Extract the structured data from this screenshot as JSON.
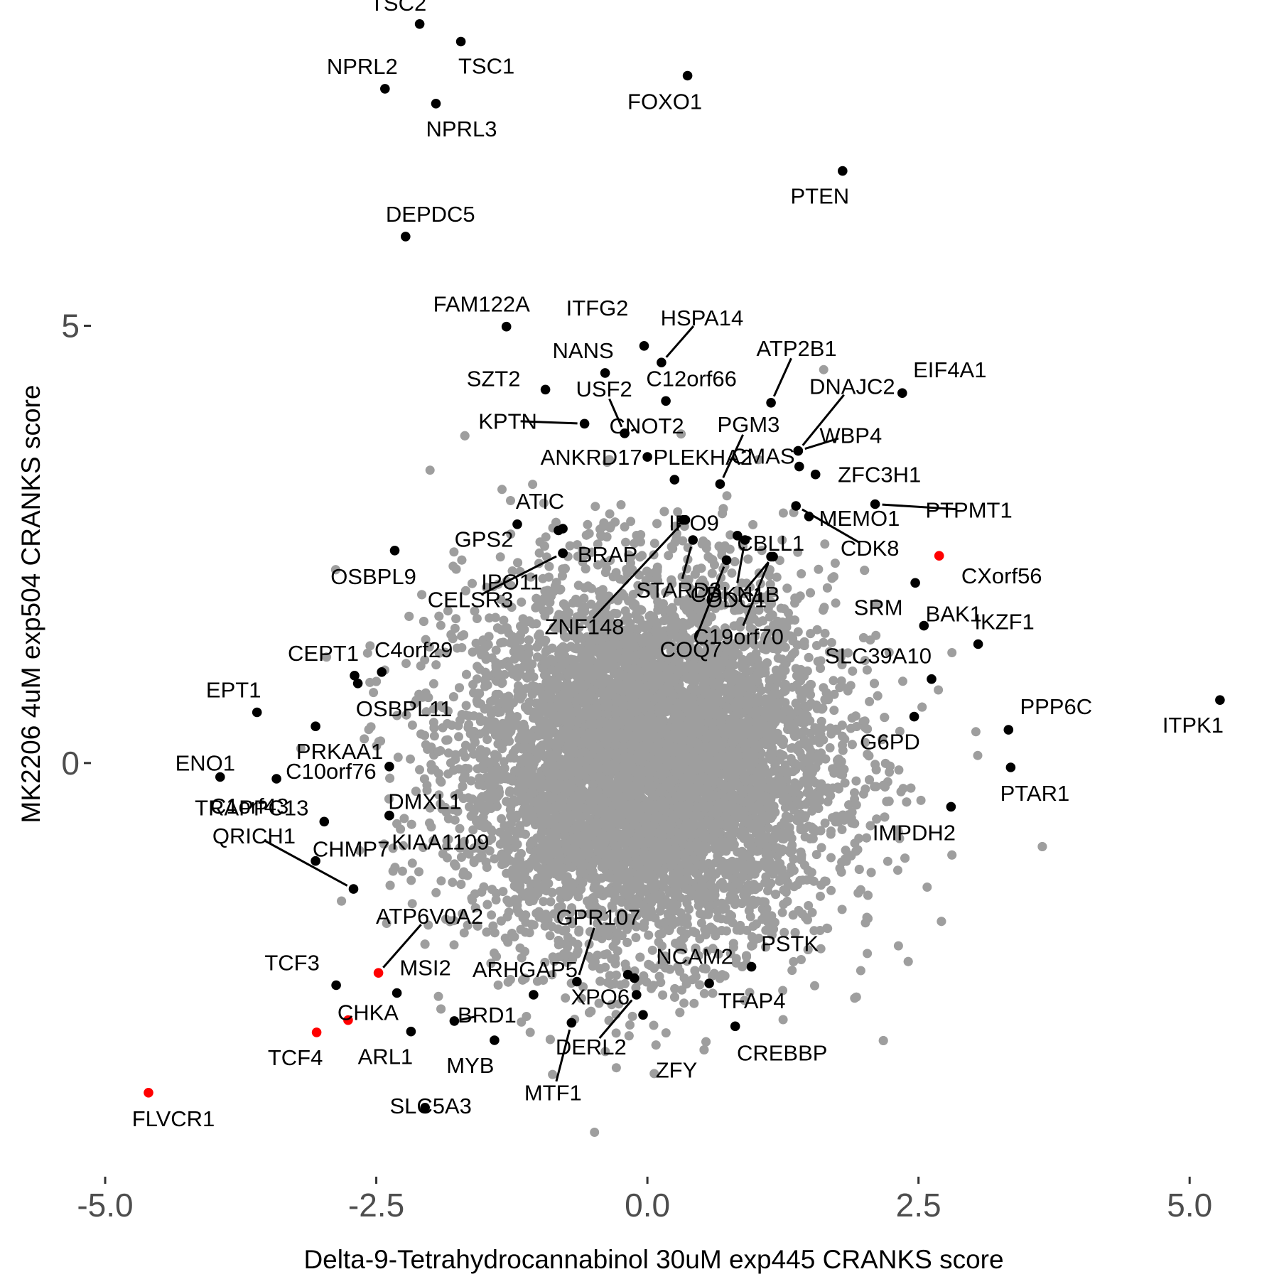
{
  "chart_data": {
    "type": "scatter",
    "title": "",
    "xlabel": "Delta-9-Tetrahydrocannabinol 30uM exp445 CRANKS score",
    "ylabel": "MK2206 4uM exp504 CRANKS score",
    "xlim": [
      -5.0,
      5.3
    ],
    "ylim": [
      -4.6,
      8.4
    ],
    "x_ticks": [
      -5.0,
      -2.5,
      0.0,
      2.5,
      5.0
    ],
    "x_tick_labels": [
      "-5.0",
      "-2.5",
      "0.0",
      "2.5",
      "5.0"
    ],
    "y_ticks": [
      0,
      5
    ],
    "y_tick_labels": [
      "0",
      "5"
    ],
    "grid": false,
    "legend": "none",
    "colors": {
      "background": "#b0b0b0",
      "highlight": "#000000",
      "special": "#ff0000"
    },
    "background_cloud": {
      "color": "#9e9e9e",
      "center": [
        0.0,
        0.0
      ],
      "sd": [
        0.85,
        1.05
      ],
      "n": 9000
    },
    "points": [
      {
        "label": "TSC2",
        "x": -2.1,
        "y": 8.45,
        "color": "#000000"
      },
      {
        "label": "TSC1",
        "x": -1.72,
        "y": 8.25,
        "color": "#000000"
      },
      {
        "label": "NPRL2",
        "x": -2.42,
        "y": 7.71,
        "color": "#000000"
      },
      {
        "label": "NPRL3",
        "x": -1.95,
        "y": 7.54,
        "color": "#000000"
      },
      {
        "label": "FOXO1",
        "x": 0.37,
        "y": 7.86,
        "color": "#000000"
      },
      {
        "label": "PTEN",
        "x": 1.8,
        "y": 6.77,
        "color": "#000000"
      },
      {
        "label": "DEPDC5",
        "x": -2.23,
        "y": 6.02,
        "color": "#000000"
      },
      {
        "label": "FAM122A",
        "x": -1.3,
        "y": 4.99,
        "color": "#000000"
      },
      {
        "label": "ITFG2",
        "x": -0.03,
        "y": 4.77,
        "color": "#000000"
      },
      {
        "label": "HSPA14",
        "x": 0.13,
        "y": 4.58,
        "color": "#000000"
      },
      {
        "label": "NANS",
        "x": -0.39,
        "y": 4.46,
        "color": "#000000"
      },
      {
        "label": "SZT2",
        "x": -0.94,
        "y": 4.27,
        "color": "#000000"
      },
      {
        "label": "C12orf66",
        "x": 0.17,
        "y": 4.14,
        "color": "#000000"
      },
      {
        "label": "ATP2B1",
        "x": 1.14,
        "y": 4.12,
        "color": "#000000"
      },
      {
        "label": "EIF4A1",
        "x": 2.35,
        "y": 4.23,
        "color": "#000000"
      },
      {
        "label": "KPTN",
        "x": -0.58,
        "y": 3.88,
        "color": "#000000"
      },
      {
        "label": "CNOT2",
        "x": -0.21,
        "y": 3.77,
        "color": "#000000"
      },
      {
        "label": "USF2",
        "x": -0.21,
        "y": 3.77,
        "color": "#000000"
      },
      {
        "label": "ANKRD17",
        "x": 0.0,
        "y": 3.5,
        "color": "#000000"
      },
      {
        "label": "DNAJC2",
        "x": 1.39,
        "y": 3.57,
        "color": "#000000"
      },
      {
        "label": "WBP4",
        "x": 1.39,
        "y": 3.57,
        "color": "#000000"
      },
      {
        "label": "ZFC3H1",
        "x": 1.55,
        "y": 3.3,
        "color": "#000000"
      },
      {
        "label": "PGM3",
        "x": 0.67,
        "y": 3.19,
        "color": "#000000"
      },
      {
        "label": "CMAS",
        "x": 1.4,
        "y": 3.39,
        "color": "#000000"
      },
      {
        "label": "PLEKHA2",
        "x": 0.25,
        "y": 3.24,
        "color": "#000000"
      },
      {
        "label": "IPO9",
        "x": 0.33,
        "y": 2.78,
        "color": "#000000"
      },
      {
        "label": "PTPMT1",
        "x": 2.1,
        "y": 2.96,
        "color": "#000000"
      },
      {
        "label": "MEMO1",
        "x": 1.49,
        "y": 2.82,
        "color": "#000000"
      },
      {
        "label": "CDK8",
        "x": 1.37,
        "y": 2.94,
        "color": "#000000"
      },
      {
        "label": "ATIC",
        "x": -1.2,
        "y": 2.73,
        "color": "#000000"
      },
      {
        "label": "GPS2",
        "x": -0.82,
        "y": 2.66,
        "color": "#000000"
      },
      {
        "label": "BRAP",
        "x": -0.78,
        "y": 2.68,
        "color": "#000000"
      },
      {
        "label": "IPO11",
        "x": -0.78,
        "y": 2.4,
        "color": "#000000"
      },
      {
        "label": "CELSR3",
        "x": -0.78,
        "y": 2.4,
        "color": "#000000"
      },
      {
        "label": "OSBPL9",
        "x": -2.33,
        "y": 2.43,
        "color": "#000000"
      },
      {
        "label": "CBLL1",
        "x": 0.83,
        "y": 2.6,
        "color": "#000000"
      },
      {
        "label": "STARD3",
        "x": 0.42,
        "y": 2.55,
        "color": "#000000"
      },
      {
        "label": "ZNF148",
        "x": 0.35,
        "y": 2.78,
        "color": "#000000"
      },
      {
        "label": "COQ7",
        "x": 0.73,
        "y": 2.32,
        "color": "#000000"
      },
      {
        "label": "ODC1",
        "x": 1.16,
        "y": 2.36,
        "color": "#000000"
      },
      {
        "label": "CDKN1B",
        "x": 0.9,
        "y": 2.55,
        "color": "#000000"
      },
      {
        "label": "C19orf70",
        "x": 1.14,
        "y": 2.36,
        "color": "#000000"
      },
      {
        "label": "CXorf56",
        "x": 2.69,
        "y": 2.37,
        "color": "#ff0000"
      },
      {
        "label": "SRM",
        "x": 2.47,
        "y": 2.06,
        "color": "#000000"
      },
      {
        "label": "IKZF1",
        "x": 3.05,
        "y": 1.36,
        "color": "#000000"
      },
      {
        "label": "BAK1",
        "x": 2.55,
        "y": 1.57,
        "color": "#000000"
      },
      {
        "label": "SLC39A10",
        "x": 2.62,
        "y": 0.96,
        "color": "#000000"
      },
      {
        "label": "PPP6C",
        "x": 3.33,
        "y": 0.38,
        "color": "#000000"
      },
      {
        "label": "ITPK1",
        "x": 5.28,
        "y": 0.72,
        "color": "#000000"
      },
      {
        "label": "G6PD",
        "x": 2.46,
        "y": 0.53,
        "color": "#000000"
      },
      {
        "label": "PTAR1",
        "x": 3.35,
        "y": -0.05,
        "color": "#000000"
      },
      {
        "label": "IMPDH2",
        "x": 2.8,
        "y": -0.5,
        "color": "#000000"
      },
      {
        "label": "CEPT1",
        "x": -2.7,
        "y": 1.0,
        "color": "#000000"
      },
      {
        "label": "C4orf29",
        "x": -2.45,
        "y": 1.04,
        "color": "#000000"
      },
      {
        "label": "OSBPL11",
        "x": -2.67,
        "y": 0.91,
        "color": "#000000"
      },
      {
        "label": "EPT1",
        "x": -3.6,
        "y": 0.58,
        "color": "#000000"
      },
      {
        "label": "PRKAA1",
        "x": -3.06,
        "y": 0.42,
        "color": "#000000"
      },
      {
        "label": "ENO1",
        "x": -3.94,
        "y": -0.16,
        "color": "#000000"
      },
      {
        "label": "C1orf43",
        "x": -3.42,
        "y": -0.18,
        "color": "#000000"
      },
      {
        "label": "C10orf76",
        "x": -2.38,
        "y": -0.04,
        "color": "#000000"
      },
      {
        "label": "DMXL1",
        "x": -2.38,
        "y": -0.6,
        "color": "#000000"
      },
      {
        "label": "TRAPPC13",
        "x": -2.98,
        "y": -0.67,
        "color": "#000000"
      },
      {
        "label": "KIAA1109",
        "x": -2.38,
        "y": -0.6,
        "color": "#000000"
      },
      {
        "label": "CHMP7",
        "x": -3.06,
        "y": -1.12,
        "color": "#000000"
      },
      {
        "label": "QRICH1",
        "x": -2.71,
        "y": -1.44,
        "color": "#000000"
      },
      {
        "label": "ATP6V0A2",
        "x": -2.48,
        "y": -2.4,
        "color": "#ff0000"
      },
      {
        "label": "TCF3",
        "x": -2.87,
        "y": -2.54,
        "color": "#000000"
      },
      {
        "label": "MSI2",
        "x": -2.31,
        "y": -2.63,
        "color": "#000000"
      },
      {
        "label": "CHKA",
        "x": -2.76,
        "y": -2.94,
        "color": "#ff0000"
      },
      {
        "label": "BRD1",
        "x": -1.78,
        "y": -2.95,
        "color": "#000000"
      },
      {
        "label": "TCF4",
        "x": -3.05,
        "y": -3.08,
        "color": "#ff0000"
      },
      {
        "label": "ARL1",
        "x": -2.18,
        "y": -3.07,
        "color": "#000000"
      },
      {
        "label": "MYB",
        "x": -1.41,
        "y": -3.17,
        "color": "#000000"
      },
      {
        "label": "FLVCR1",
        "x": -4.6,
        "y": -3.77,
        "color": "#ff0000"
      },
      {
        "label": "SLC5A3",
        "x": -2.05,
        "y": -3.94,
        "color": "#000000"
      },
      {
        "label": "ARHGAP5",
        "x": -1.05,
        "y": -2.65,
        "color": "#000000"
      },
      {
        "label": "GPR107",
        "x": -0.65,
        "y": -2.5,
        "color": "#000000"
      },
      {
        "label": "NCAM2",
        "x": -0.18,
        "y": -2.42,
        "color": "#000000"
      },
      {
        "label": "PSTK",
        "x": 0.96,
        "y": -2.33,
        "color": "#000000"
      },
      {
        "label": "XPO6",
        "x": -0.12,
        "y": -2.46,
        "color": "#000000"
      },
      {
        "label": "TFAP4",
        "x": 0.57,
        "y": -2.52,
        "color": "#000000"
      },
      {
        "label": "DERL2",
        "x": -0.1,
        "y": -2.65,
        "color": "#000000"
      },
      {
        "label": "ZFY",
        "x": -0.04,
        "y": -2.88,
        "color": "#000000"
      },
      {
        "label": "CREBBP",
        "x": 0.81,
        "y": -3.01,
        "color": "#000000"
      },
      {
        "label": "MTF1",
        "x": -0.7,
        "y": -2.97,
        "color": "#000000"
      }
    ]
  }
}
